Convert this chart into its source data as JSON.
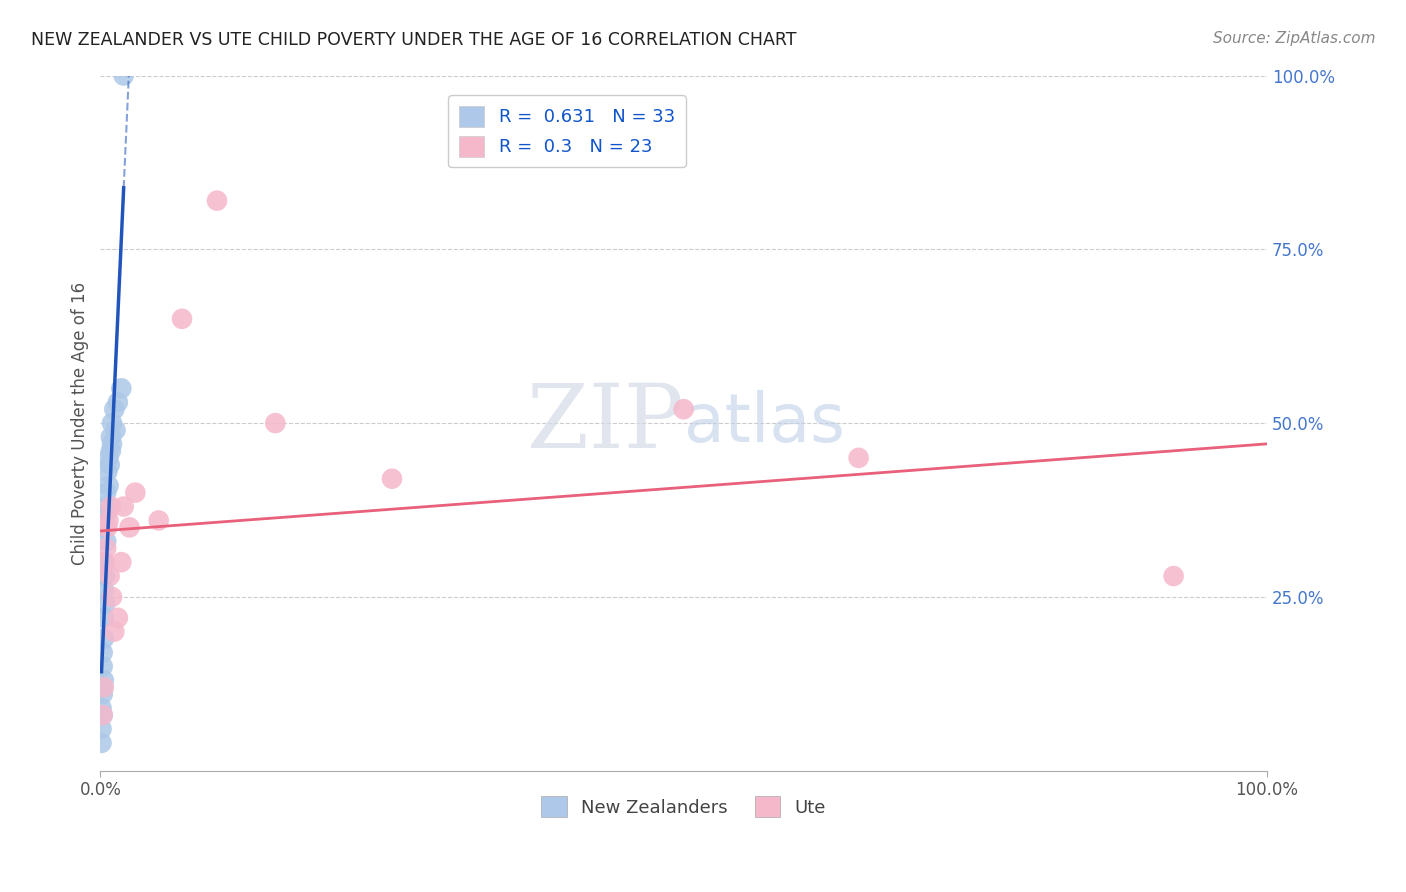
{
  "title": "NEW ZEALANDER VS UTE CHILD POVERTY UNDER THE AGE OF 16 CORRELATION CHART",
  "source": "Source: ZipAtlas.com",
  "ylabel": "Child Poverty Under the Age of 16",
  "nz_R": 0.631,
  "nz_N": 33,
  "ute_R": 0.3,
  "ute_N": 23,
  "nz_color": "#adc8e8",
  "ute_color": "#f5b8cb",
  "nz_line_color": "#2255bb",
  "ute_line_color": "#e8607a",
  "bg_color": "#ffffff",
  "grid_color": "#cccccc",
  "title_color": "#222222",
  "right_label_color": "#4477cc",
  "legend_r_color": "#1155cc",
  "legend_n_color": "#1155cc",
  "nz_x": [
    0.001,
    0.001,
    0.001,
    0.002,
    0.002,
    0.002,
    0.002,
    0.002,
    0.003,
    0.003,
    0.003,
    0.003,
    0.003,
    0.004,
    0.004,
    0.004,
    0.005,
    0.005,
    0.005,
    0.006,
    0.006,
    0.007,
    0.007,
    0.008,
    0.009,
    0.009,
    0.01,
    0.01,
    0.012,
    0.013,
    0.015,
    0.018,
    0.02
  ],
  "nz_y": [
    0.04,
    0.06,
    0.09,
    0.08,
    0.11,
    0.12,
    0.15,
    0.17,
    0.13,
    0.19,
    0.22,
    0.26,
    0.3,
    0.24,
    0.28,
    0.35,
    0.33,
    0.37,
    0.4,
    0.38,
    0.43,
    0.41,
    0.45,
    0.44,
    0.46,
    0.48,
    0.47,
    0.5,
    0.52,
    0.49,
    0.53,
    0.55,
    1.0
  ],
  "ute_x": [
    0.002,
    0.003,
    0.004,
    0.005,
    0.006,
    0.007,
    0.008,
    0.009,
    0.01,
    0.012,
    0.015,
    0.018,
    0.02,
    0.025,
    0.03,
    0.05,
    0.07,
    0.1,
    0.15,
    0.25,
    0.5,
    0.65,
    0.92
  ],
  "ute_y": [
    0.08,
    0.12,
    0.3,
    0.32,
    0.35,
    0.36,
    0.28,
    0.38,
    0.25,
    0.2,
    0.22,
    0.3,
    0.38,
    0.35,
    0.4,
    0.36,
    0.65,
    0.82,
    0.5,
    0.42,
    0.52,
    0.45,
    0.28
  ],
  "xlim": [
    0.0,
    1.0
  ],
  "ylim": [
    0.0,
    1.0
  ]
}
